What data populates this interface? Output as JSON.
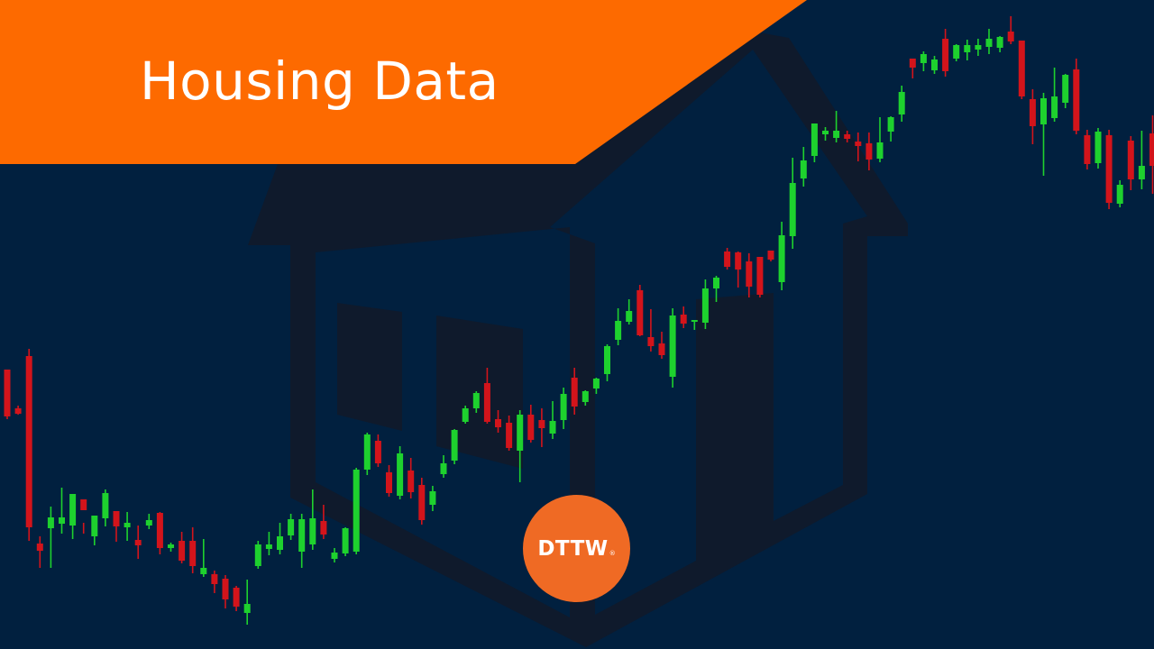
{
  "banner": {
    "title": "Housing Data"
  },
  "logo": {
    "text": "DTTW",
    "registered_mark": "®"
  },
  "colors": {
    "background": "#01203f",
    "house": "#0f1a2c",
    "banner": "#fd6a00",
    "logo": "#ef6a24",
    "candle_up": "#1ed12e",
    "candle_down": "#d3141b"
  },
  "icons": [
    "house-illustration-icon"
  ],
  "candles": [
    [
      445,
      410,
      462,
      465,
      "d"
    ],
    [
      450,
      453,
      459,
      460,
      "d"
    ],
    [
      387,
      395,
      585,
      600,
      "d"
    ],
    [
      595,
      603,
      611,
      630,
      "d"
    ],
    [
      562,
      574,
      586,
      630,
      "u"
    ],
    [
      541,
      574,
      581,
      592,
      "u"
    ],
    [
      571,
      548,
      583,
      598,
      "u"
    ],
    [
      580,
      554,
      566,
      592,
      "d"
    ],
    [
      595,
      572,
      595,
      605,
      "u"
    ],
    [
      543,
      547,
      575,
      584,
      "u"
    ],
    [
      580,
      567,
      584,
      601,
      "d"
    ],
    [
      568,
      580,
      585,
      600,
      "u"
    ],
    [
      583,
      599,
      605,
      620,
      "d"
    ],
    [
      570,
      577,
      583,
      587,
      "u"
    ],
    [
      568,
      569,
      608,
      615,
      "d"
    ],
    [
      602,
      604,
      608,
      612,
      "u"
    ],
    [
      590,
      600,
      622,
      625,
      "d"
    ],
    [
      585,
      600,
      628,
      636,
      "d"
    ],
    [
      598,
      630,
      637,
      640,
      "u"
    ],
    [
      633,
      637,
      648,
      658,
      "d"
    ],
    [
      638,
      642,
      665,
      675,
      "d"
    ],
    [
      650,
      652,
      673,
      678,
      "d"
    ],
    [
      643,
      670,
      680,
      693,
      "u"
    ],
    [
      600,
      604,
      628,
      631,
      "u"
    ],
    [
      590,
      604,
      609,
      616,
      "u"
    ],
    [
      580,
      595,
      610,
      615,
      "u"
    ],
    [
      570,
      576,
      594,
      599,
      "u"
    ],
    [
      570,
      576,
      612,
      630,
      "u"
    ],
    [
      543,
      575,
      604,
      610,
      "u"
    ],
    [
      560,
      578,
      593,
      598,
      "d"
    ],
    [
      608,
      613,
      620,
      624,
      "u"
    ],
    [
      585,
      586,
      614,
      617,
      "u"
    ],
    [
      519,
      521,
      612,
      615,
      "u"
    ],
    [
      480,
      482,
      521,
      527,
      "u"
    ],
    [
      482,
      489,
      514,
      518,
      "d"
    ],
    [
      516,
      524,
      547,
      551,
      "d"
    ],
    [
      495,
      503,
      550,
      554,
      "u"
    ],
    [
      508,
      522,
      546,
      553,
      "d"
    ],
    [
      530,
      538,
      577,
      582,
      "d"
    ],
    [
      539,
      545,
      560,
      567,
      "u"
    ],
    [
      505,
      514,
      526,
      530,
      "u"
    ],
    [
      476,
      477,
      511,
      515,
      "u"
    ],
    [
      450,
      453,
      468,
      470,
      "u"
    ],
    [
      434,
      436,
      453,
      458,
      "u"
    ],
    [
      408,
      425,
      468,
      470,
      "d"
    ],
    [
      455,
      465,
      474,
      480,
      "d"
    ],
    [
      461,
      469,
      497,
      500,
      "d"
    ],
    [
      455,
      460,
      500,
      535,
      "u"
    ],
    [
      449,
      460,
      488,
      491,
      "d"
    ],
    [
      453,
      466,
      475,
      496,
      "d"
    ],
    [
      445,
      467,
      481,
      487,
      "u"
    ],
    [
      430,
      437,
      466,
      476,
      "u"
    ],
    [
      408,
      419,
      451,
      460,
      "d"
    ],
    [
      433,
      434,
      446,
      450,
      "u"
    ],
    [
      419,
      420,
      431,
      437,
      "u"
    ],
    [
      382,
      384,
      415,
      423,
      "u"
    ],
    [
      342,
      356,
      377,
      383,
      "u"
    ],
    [
      332,
      345,
      357,
      360,
      "u"
    ],
    [
      316,
      322,
      372,
      373,
      "d"
    ],
    [
      343,
      374,
      384,
      390,
      "d"
    ],
    [
      368,
      381,
      394,
      398,
      "d"
    ],
    [
      342,
      350,
      418,
      430,
      "u"
    ],
    [
      340,
      349,
      359,
      364,
      "d"
    ],
    [
      355,
      355,
      357,
      366,
      "u"
    ],
    [
      310,
      320,
      358,
      365,
      "u"
    ],
    [
      306,
      308,
      320,
      335,
      "u"
    ],
    [
      275,
      279,
      296,
      299,
      "d"
    ],
    [
      279,
      280,
      299,
      319,
      "d"
    ],
    [
      281,
      290,
      318,
      330,
      "d"
    ],
    [
      285,
      285,
      327,
      330,
      "d"
    ],
    [
      278,
      278,
      288,
      290,
      "d"
    ],
    [
      246,
      261,
      313,
      322,
      "u"
    ],
    [
      175,
      203,
      262,
      276,
      "u"
    ],
    [
      163,
      178,
      198,
      207,
      "u"
    ],
    [
      140,
      137,
      173,
      180,
      "u"
    ],
    [
      141,
      145,
      149,
      156,
      "u"
    ],
    [
      123,
      145,
      153,
      158,
      "u"
    ],
    [
      145,
      149,
      154,
      158,
      "d"
    ],
    [
      147,
      157,
      162,
      179,
      "d"
    ],
    [
      147,
      159,
      177,
      189,
      "d"
    ],
    [
      130,
      158,
      176,
      180,
      "u"
    ],
    [
      129,
      130,
      146,
      157,
      "u"
    ],
    [
      95,
      102,
      127,
      135,
      "u"
    ],
    [
      65,
      65,
      75,
      87,
      "d"
    ],
    [
      57,
      60,
      70,
      79,
      "u"
    ],
    [
      62,
      66,
      78,
      82,
      "u"
    ],
    [
      32,
      43,
      79,
      85,
      "d"
    ],
    [
      49,
      50,
      65,
      68,
      "u"
    ],
    [
      44,
      50,
      58,
      67,
      "u"
    ],
    [
      43,
      50,
      55,
      62,
      "u"
    ],
    [
      32,
      43,
      52,
      60,
      "u"
    ],
    [
      40,
      41,
      53,
      58,
      "u"
    ],
    [
      18,
      35,
      46,
      49,
      "d"
    ],
    [
      45,
      45,
      107,
      110,
      "d"
    ],
    [
      99,
      110,
      140,
      160,
      "d"
    ],
    [
      103,
      109,
      138,
      195,
      "u"
    ],
    [
      75,
      107,
      131,
      135,
      "u"
    ],
    [
      82,
      83,
      114,
      120,
      "u"
    ],
    [
      65,
      77,
      145,
      149,
      "d"
    ],
    [
      144,
      150,
      182,
      188,
      "d"
    ],
    [
      142,
      146,
      181,
      187,
      "u"
    ],
    [
      144,
      150,
      225,
      232,
      "d"
    ],
    [
      200,
      205,
      226,
      230,
      "u"
    ],
    [
      151,
      156,
      199,
      211,
      "d"
    ],
    [
      145,
      184,
      199,
      210,
      "u"
    ],
    [
      128,
      148,
      184,
      215,
      "d"
    ],
    [
      140,
      146,
      181,
      184,
      "u"
    ],
    [
      125,
      127,
      151,
      157,
      "u"
    ],
    [
      128,
      131,
      145,
      150,
      "u"
    ],
    [
      105,
      114,
      135,
      137,
      "u"
    ],
    [
      100,
      115,
      137,
      152,
      "d"
    ],
    [
      99,
      118,
      136,
      142,
      "u"
    ]
  ]
}
